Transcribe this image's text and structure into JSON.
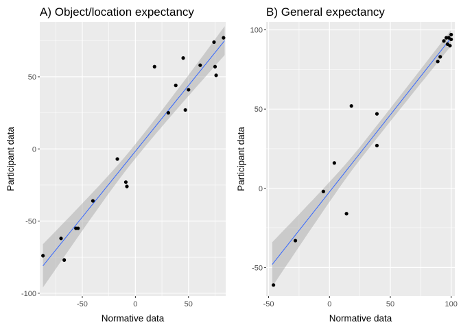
{
  "chart_data": [
    {
      "type": "scatter",
      "title": "A) Object/location expectancy",
      "xlabel": "Normative data",
      "ylabel": "Participant data",
      "xlim": [
        -90,
        85
      ],
      "ylim": [
        -102,
        88
      ],
      "xticks": [
        -50,
        0,
        50
      ],
      "yticks": [
        -100,
        -50,
        0,
        50
      ],
      "grid": true,
      "trend": {
        "method": "linear",
        "x0": -87,
        "x1": 84,
        "y0": -81,
        "y1": 75,
        "se_start": 15,
        "se_mid": 5,
        "se_end": 10,
        "color": "#3366ff"
      },
      "points": [
        {
          "x": -87,
          "y": -74
        },
        {
          "x": -70,
          "y": -62
        },
        {
          "x": -67,
          "y": -77
        },
        {
          "x": -56,
          "y": -55
        },
        {
          "x": -54,
          "y": -55
        },
        {
          "x": -40,
          "y": -36
        },
        {
          "x": -17,
          "y": -7
        },
        {
          "x": -9,
          "y": -23
        },
        {
          "x": -8,
          "y": -26
        },
        {
          "x": 18,
          "y": 57
        },
        {
          "x": 31,
          "y": 25
        },
        {
          "x": 38,
          "y": 44
        },
        {
          "x": 45,
          "y": 63
        },
        {
          "x": 47,
          "y": 27
        },
        {
          "x": 50,
          "y": 41
        },
        {
          "x": 61,
          "y": 58
        },
        {
          "x": 74,
          "y": 74
        },
        {
          "x": 75,
          "y": 57
        },
        {
          "x": 76,
          "y": 51
        },
        {
          "x": 83,
          "y": 77
        }
      ]
    },
    {
      "type": "scatter",
      "title": "B) General expectancy",
      "xlabel": "Normative data",
      "ylabel": "Participant data",
      "xlim": [
        -52,
        103
      ],
      "ylim": [
        -68,
        105
      ],
      "xticks": [
        -50,
        0,
        50,
        100
      ],
      "yticks": [
        -50,
        0,
        50,
        100
      ],
      "grid": true,
      "trend": {
        "method": "linear",
        "x0": -47,
        "x1": 100,
        "y0": -48,
        "y1": 95,
        "se_start": 14,
        "se_mid": 4,
        "se_end": 5,
        "color": "#3366ff"
      },
      "points": [
        {
          "x": -46,
          "y": -61
        },
        {
          "x": -28,
          "y": -33
        },
        {
          "x": -5,
          "y": -2
        },
        {
          "x": 4,
          "y": 16
        },
        {
          "x": 14,
          "y": -16
        },
        {
          "x": 18,
          "y": 52
        },
        {
          "x": 39,
          "y": 47
        },
        {
          "x": 39,
          "y": 27
        },
        {
          "x": 89,
          "y": 80
        },
        {
          "x": 91,
          "y": 83
        },
        {
          "x": 94,
          "y": 93
        },
        {
          "x": 96,
          "y": 95
        },
        {
          "x": 97,
          "y": 91
        },
        {
          "x": 98,
          "y": 95
        },
        {
          "x": 99,
          "y": 90
        },
        {
          "x": 100,
          "y": 97
        },
        {
          "x": 100,
          "y": 94
        }
      ]
    }
  ]
}
